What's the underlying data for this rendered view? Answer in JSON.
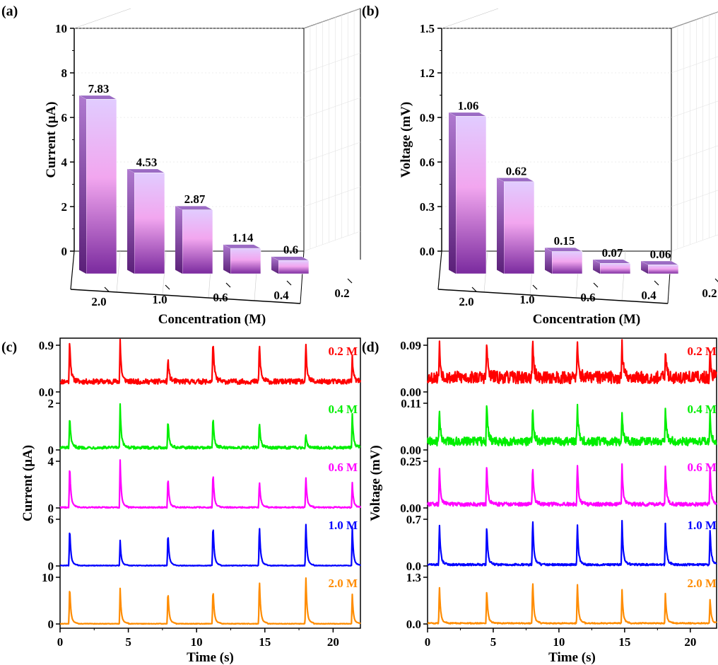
{
  "panels": {
    "a": {
      "label": "(a)",
      "chart_data": {
        "type": "bar",
        "categories": [
          "2.0",
          "1.0",
          "0.6",
          "0.4",
          "0.2"
        ],
        "values": [
          7.83,
          4.53,
          2.87,
          1.14,
          0.6
        ],
        "data_labels": [
          "7.83",
          "4.53",
          "2.87",
          "1.14",
          "0.6"
        ],
        "ylabel": "Current (μA)",
        "xlabel": "Concentration (M)",
        "ylim": [
          0,
          10
        ],
        "yticks": [
          0,
          2,
          4,
          6,
          8,
          10
        ],
        "ytick_labels": [
          "0",
          "2",
          "4",
          "6",
          "8",
          "10"
        ],
        "style": "3d-bars",
        "colors": [
          "#7a2a9e",
          "#f2a6ef",
          "#e1ccff"
        ]
      }
    },
    "b": {
      "label": "(b)",
      "chart_data": {
        "type": "bar",
        "categories": [
          "2.0",
          "1.0",
          "0.6",
          "0.4",
          "0.2"
        ],
        "values": [
          1.06,
          0.62,
          0.15,
          0.07,
          0.06
        ],
        "data_labels": [
          "1.06",
          "0.62",
          "0.15",
          "0.07",
          "0.06"
        ],
        "ylabel": "Voltage (mV)",
        "xlabel": "Concentration (M)",
        "ylim": [
          0,
          1.5
        ],
        "yticks": [
          0,
          0.3,
          0.6,
          0.9,
          1.2,
          1.5
        ],
        "ytick_labels": [
          "0.0",
          "0.3",
          "0.6",
          "0.9",
          "1.2",
          "1.5"
        ],
        "style": "3d-bars",
        "colors": [
          "#7a2a9e",
          "#f2a6ef",
          "#e1ccff"
        ]
      }
    },
    "c": {
      "label": "(c)",
      "chart_data": {
        "type": "line",
        "xlabel": "Time (s)",
        "ylabel": "Current (μA)",
        "xlim": [
          0,
          22
        ],
        "xticks": [
          0,
          5,
          10,
          15,
          20
        ],
        "xtick_labels": [
          "0",
          "5",
          "10",
          "15",
          "20"
        ],
        "peak_times": [
          0.7,
          4.4,
          7.9,
          11.2,
          14.6,
          18.0,
          21.4
        ],
        "series": [
          {
            "name": "0.2 M",
            "color": "#ff0000",
            "ylim": [
              0,
              0.9
            ],
            "ytick_labels": [
              "0.0",
              "0.9"
            ],
            "baseline": 0.2,
            "noise": 0.05,
            "peaks": [
              0.82,
              0.75,
              0.45,
              0.84,
              0.75,
              0.68,
              0.45
            ]
          },
          {
            "name": "0.4 M",
            "color": "#00ee00",
            "ylim": [
              0,
              2
            ],
            "ytick_labels": [
              "0",
              "2"
            ],
            "baseline": 0.1,
            "noise": 0.06,
            "peaks": [
              1.3,
              1.7,
              1.2,
              1.3,
              1.1,
              0.6,
              1.4
            ]
          },
          {
            "name": "0.6 M",
            "color": "#ff00ff",
            "ylim": [
              0,
              4
            ],
            "ytick_labels": [
              "0",
              "4"
            ],
            "baseline": 0.05,
            "noise": 0.05,
            "peaks": [
              3.6,
              3.8,
              2.6,
              3.0,
              2.3,
              2.6,
              2.0
            ]
          },
          {
            "name": "1.0 M",
            "color": "#0000ff",
            "ylim": [
              0,
              6
            ],
            "ytick_labels": [
              "0",
              "6"
            ],
            "baseline": 0.05,
            "noise": 0.04,
            "peaks": [
              4.8,
              3.0,
              4.2,
              5.3,
              5.2,
              5.4,
              4.7
            ]
          },
          {
            "name": "2.0 M",
            "color": "#ff8c00",
            "ylim": [
              0,
              10
            ],
            "ytick_labels": [
              "0",
              "10"
            ],
            "baseline": 0.05,
            "noise": 0.05,
            "peaks": [
              8.0,
              7.0,
              7.0,
              7.5,
              9.5,
              10.0,
              6.0
            ]
          }
        ]
      }
    },
    "d": {
      "label": "(d)",
      "chart_data": {
        "type": "line",
        "xlabel": "Time (s)",
        "ylabel": "Voltage (mV)",
        "xlim": [
          0,
          22
        ],
        "xticks": [
          0,
          5,
          10,
          15,
          20
        ],
        "xtick_labels": [
          "0",
          "5",
          "10",
          "15",
          "20"
        ],
        "peak_times": [
          0.9,
          4.5,
          8.0,
          11.4,
          14.8,
          18.1,
          21.5
        ],
        "series": [
          {
            "name": "0.2 M",
            "color": "#ff0000",
            "ylim": [
              0,
              0.09
            ],
            "ytick_labels": [
              "0.00",
              "0.09"
            ],
            "baseline": 0.028,
            "noise": 0.012,
            "peaks": [
              0.065,
              0.07,
              0.065,
              0.062,
              0.065,
              0.05,
              0.05
            ]
          },
          {
            "name": "0.4 M",
            "color": "#00ee00",
            "ylim": [
              0,
              0.11
            ],
            "ytick_labels": [
              "0.00",
              "0.11"
            ],
            "baseline": 0.02,
            "noise": 0.01,
            "peaks": [
              0.07,
              0.095,
              0.08,
              0.09,
              0.06,
              0.08,
              0.07
            ]
          },
          {
            "name": "0.6 M",
            "color": "#ff00ff",
            "ylim": [
              0,
              0.25
            ],
            "ytick_labels": [
              "0.00",
              "0.25"
            ],
            "baseline": 0.02,
            "noise": 0.01,
            "peaks": [
              0.2,
              0.22,
              0.21,
              0.22,
              0.2,
              0.2,
              0.2
            ]
          },
          {
            "name": "1.0 M",
            "color": "#0000ff",
            "ylim": [
              0,
              0.7
            ],
            "ytick_labels": [
              "0.0",
              "0.7"
            ],
            "baseline": 0.02,
            "noise": 0.015,
            "peaks": [
              0.62,
              0.6,
              0.69,
              0.6,
              0.62,
              0.6,
              0.55
            ]
          },
          {
            "name": "2.0 M",
            "color": "#ff8c00",
            "ylim": [
              0,
              1.3
            ],
            "ytick_labels": [
              "0.0",
              "1.3"
            ],
            "baseline": 0.02,
            "noise": 0.015,
            "peaks": [
              1.05,
              0.95,
              1.2,
              1.1,
              0.88,
              0.8,
              0.7
            ]
          }
        ]
      }
    }
  }
}
